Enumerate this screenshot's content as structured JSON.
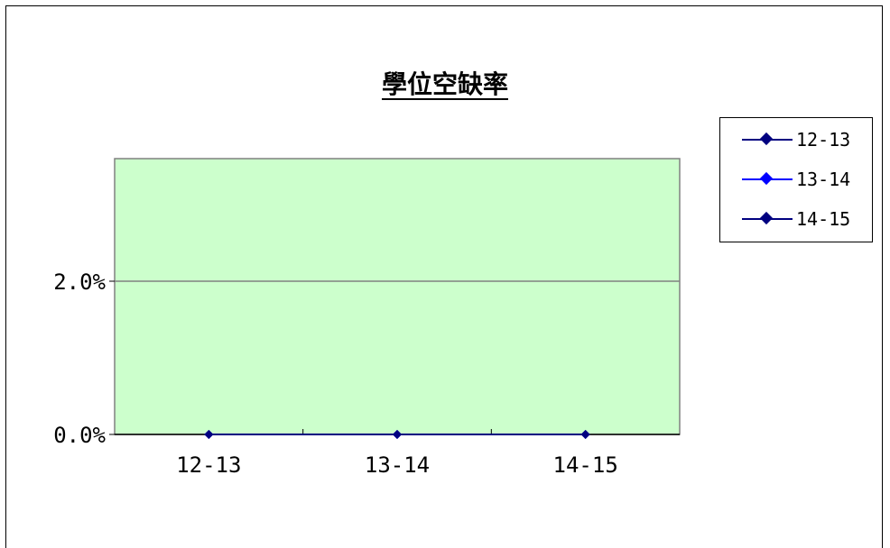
{
  "chart_data": {
    "type": "line",
    "title": "學位空缺率",
    "categories": [
      "12-13",
      "13-14",
      "14-15"
    ],
    "series": [
      {
        "name": "12-13",
        "values": [
          0,
          0,
          0
        ],
        "color": "#000080"
      },
      {
        "name": "13-14",
        "values": [
          0,
          0,
          0
        ],
        "color": "#0000ff"
      },
      {
        "name": "14-15",
        "values": [
          0,
          0,
          0
        ],
        "color": "#000080"
      }
    ],
    "y_ticks": [
      "0.0%",
      "2.0%"
    ],
    "y_tick_values": [
      0,
      2
    ],
    "ylim": [
      0,
      3.6
    ],
    "xlabel": "",
    "ylabel": "",
    "grid": true,
    "legend_position": "right",
    "plot_background": "#ccffcc"
  }
}
